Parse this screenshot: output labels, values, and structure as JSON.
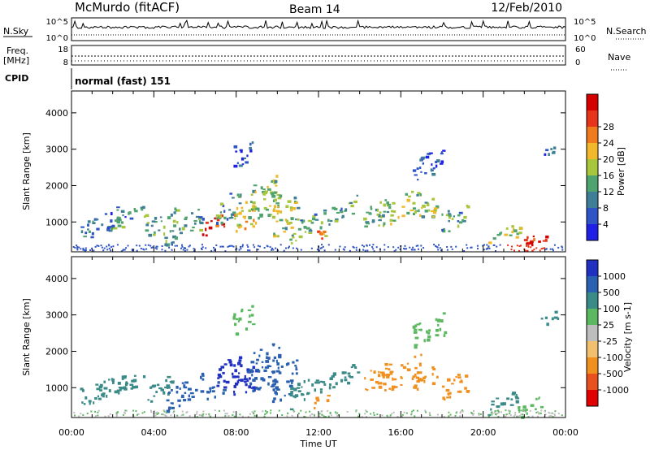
{
  "header": {
    "station": "McMurdo (fitACF)",
    "beam": "Beam 14",
    "date": "12/Feb/2010"
  },
  "strips": {
    "nsky_label": "N.Sky",
    "nsearch_label": "N.Search",
    "noise_ticks": [
      "10^5",
      "10^0"
    ],
    "freq_label": "Freq.",
    "freq_unit": "[MHz]",
    "freq_ticks": [
      "18",
      "8"
    ],
    "nave_label": "Nave",
    "nave_ticks": [
      "60",
      "0"
    ],
    "cpid_label": "CPID",
    "cpid_value": "normal (fast) 151"
  },
  "chart_data": [
    {
      "type": "heatmap",
      "name": "power",
      "ylabel": "Slant Range [km]",
      "yticks": [
        "1000",
        "2000",
        "3000",
        "4000"
      ],
      "ylim": [
        180,
        4600
      ],
      "xlabel": "Time UT",
      "xticks": [
        "00:00",
        "04:00",
        "08:00",
        "12:00",
        "16:00",
        "20:00",
        "00:00"
      ],
      "xlim": [
        0,
        24
      ],
      "colorbar": {
        "label": "Power [dB]",
        "ticks": [
          "4",
          "8",
          "12",
          "16",
          "20",
          "24",
          "28"
        ],
        "colors": [
          "#1f1fe6",
          "#2f54c6",
          "#3f7f96",
          "#4fa36e",
          "#a7c63c",
          "#f2b82c",
          "#f07a1e",
          "#e8341a",
          "#d40000"
        ]
      }
    },
    {
      "type": "heatmap",
      "name": "velocity",
      "ylabel": "Slant Range [km]",
      "yticks": [
        "1000",
        "2000",
        "3000",
        "4000"
      ],
      "ylim": [
        180,
        4600
      ],
      "xlabel": "Time UT",
      "xticks": [
        "00:00",
        "04:00",
        "08:00",
        "12:00",
        "16:00",
        "20:00",
        "00:00"
      ],
      "xlim": [
        0,
        24
      ],
      "colorbar": {
        "label": "Velocity [m s-1]",
        "ticks": [
          "1000",
          "500",
          "100",
          "25",
          "-25",
          "-100",
          "-500",
          "-1000"
        ],
        "colors": [
          "#2030c0",
          "#2a60b0",
          "#3a8a88",
          "#5cb860",
          "#bdbdbd",
          "#f0c070",
          "#f09020",
          "#e85020",
          "#e00000"
        ]
      }
    }
  ],
  "x_axis_label": "Time UT"
}
